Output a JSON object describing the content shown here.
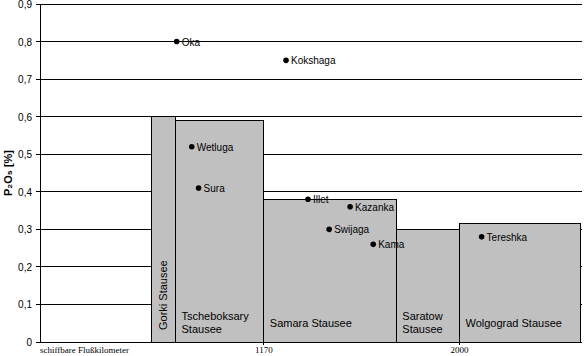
{
  "chart_data": {
    "type": "bar",
    "ylabel": "P₂O₅ [%]",
    "xlabel": "schiffbare Flußkilometer",
    "xlim": [
      220,
      2520
    ],
    "xticks": [
      1170,
      2000
    ],
    "ylim": [
      0,
      0.9
    ],
    "yticks": [
      0,
      {
        "value": 0.1,
        "label": "0,1"
      },
      {
        "value": 0.2,
        "label": "0,2"
      },
      {
        "value": 0.3,
        "label": "0,3"
      },
      {
        "value": 0.4,
        "label": "0,4"
      },
      {
        "value": 0.5,
        "label": "0,5"
      },
      {
        "value": 0.6,
        "label": "0,6"
      },
      {
        "value": 0.7,
        "label": "0,7"
      },
      {
        "value": 0.8,
        "label": "0,8"
      },
      {
        "value": 0.9,
        "label": "0,9"
      }
    ],
    "grid": true,
    "series": [
      {
        "type": "bar",
        "color": "#c0c0c0",
        "categories": [
          "Gorki Stausee",
          "Tscheboksary Stausee",
          "Samara Stausee",
          "Saratow Stausee",
          "Wolgograd Stausee"
        ],
        "x_start": [
          693,
          795,
          1170,
          1732,
          2000
        ],
        "x_end": [
          795,
          1170,
          1732,
          2000,
          2515
        ],
        "values": [
          0.6,
          0.59,
          0.38,
          0.3,
          0.315
        ]
      },
      {
        "type": "scatter",
        "color": "#000000",
        "marker": "circle",
        "labels": [
          "Oka",
          "Kokshaga",
          "Wetluga",
          "Sura",
          "Illet",
          "Kazanka",
          "Swijaga",
          "Kama",
          "Tereshka"
        ],
        "x": [
          800,
          1264,
          864,
          893,
          1357,
          1536,
          1447,
          1634,
          2094
        ],
        "values": [
          0.8,
          0.75,
          0.52,
          0.41,
          0.38,
          0.36,
          0.3,
          0.26,
          0.28
        ]
      }
    ]
  }
}
